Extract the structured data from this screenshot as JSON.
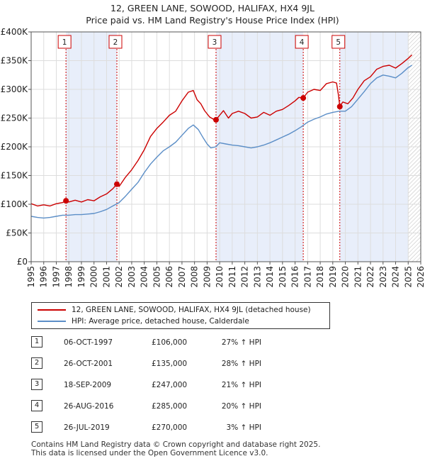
{
  "title_line1": "12, GREEN LANE, SOWOOD, HALIFAX, HX4 9JL",
  "title_line2": "Price paid vs. HM Land Registry's House Price Index (HPI)",
  "colors": {
    "property": "#cc0000",
    "hpi": "#5b8ec7",
    "shade": "#e8eefa",
    "grid": "#dddddd"
  },
  "chart_data": {
    "type": "line",
    "x_range": [
      1995,
      2026
    ],
    "ylim": [
      0,
      400000
    ],
    "y_ticks": [
      0,
      50000,
      100000,
      150000,
      200000,
      250000,
      300000,
      350000,
      400000
    ],
    "y_tick_labels": [
      "£0",
      "£50K",
      "£100K",
      "£150K",
      "£200K",
      "£250K",
      "£300K",
      "£350K",
      "£400K"
    ],
    "x_ticks": [
      "1995",
      "1996",
      "1997",
      "1998",
      "1999",
      "2000",
      "2001",
      "2002",
      "2003",
      "2004",
      "2005",
      "2006",
      "2007",
      "2008",
      "2009",
      "2010",
      "2011",
      "2012",
      "2013",
      "2014",
      "2015",
      "2016",
      "2017",
      "2018",
      "2019",
      "2020",
      "2021",
      "2022",
      "2023",
      "2024",
      "2025",
      "2026"
    ],
    "grid": true,
    "shaded_periods": [
      [
        1997.77,
        2001.82
      ],
      [
        2009.71,
        2016.65
      ],
      [
        2019.56,
        2025.0
      ]
    ],
    "forecast_hatch_from": 2025.0,
    "series": [
      {
        "name": "12, GREEN LANE, SOWOOD, HALIFAX, HX4 9JL (detached house)",
        "points": [
          [
            1995.0,
            101000
          ],
          [
            1995.5,
            97000
          ],
          [
            1996.0,
            99000
          ],
          [
            1996.5,
            97000
          ],
          [
            1997.0,
            101000
          ],
          [
            1997.5,
            103000
          ],
          [
            1997.77,
            106000
          ],
          [
            1998.0,
            104000
          ],
          [
            1998.5,
            107000
          ],
          [
            1999.0,
            104000
          ],
          [
            1999.5,
            108000
          ],
          [
            2000.0,
            106000
          ],
          [
            2000.5,
            113000
          ],
          [
            2001.0,
            118000
          ],
          [
            2001.5,
            127000
          ],
          [
            2001.82,
            135000
          ],
          [
            2002.0,
            131000
          ],
          [
            2002.5,
            147000
          ],
          [
            2003.0,
            160000
          ],
          [
            2003.5,
            176000
          ],
          [
            2004.0,
            195000
          ],
          [
            2004.5,
            218000
          ],
          [
            2005.0,
            232000
          ],
          [
            2005.5,
            243000
          ],
          [
            2006.0,
            255000
          ],
          [
            2006.5,
            262000
          ],
          [
            2007.0,
            280000
          ],
          [
            2007.5,
            295000
          ],
          [
            2007.9,
            298000
          ],
          [
            2008.2,
            282000
          ],
          [
            2008.5,
            275000
          ],
          [
            2008.8,
            263000
          ],
          [
            2009.2,
            252000
          ],
          [
            2009.5,
            248000
          ],
          [
            2009.71,
            247000
          ],
          [
            2010.0,
            255000
          ],
          [
            2010.3,
            263000
          ],
          [
            2010.7,
            250000
          ],
          [
            2011.0,
            258000
          ],
          [
            2011.5,
            262000
          ],
          [
            2012.0,
            258000
          ],
          [
            2012.5,
            250000
          ],
          [
            2013.0,
            252000
          ],
          [
            2013.5,
            260000
          ],
          [
            2014.0,
            255000
          ],
          [
            2014.5,
            262000
          ],
          [
            2015.0,
            265000
          ],
          [
            2015.5,
            272000
          ],
          [
            2016.0,
            280000
          ],
          [
            2016.3,
            286000
          ],
          [
            2016.65,
            285000
          ],
          [
            2017.0,
            295000
          ],
          [
            2017.5,
            300000
          ],
          [
            2018.0,
            298000
          ],
          [
            2018.5,
            310000
          ],
          [
            2019.0,
            313000
          ],
          [
            2019.3,
            311000
          ],
          [
            2019.45,
            290000
          ],
          [
            2019.56,
            270000
          ],
          [
            2019.8,
            278000
          ],
          [
            2020.2,
            275000
          ],
          [
            2020.6,
            285000
          ],
          [
            2021.0,
            300000
          ],
          [
            2021.5,
            315000
          ],
          [
            2022.0,
            322000
          ],
          [
            2022.5,
            335000
          ],
          [
            2023.0,
            340000
          ],
          [
            2023.5,
            342000
          ],
          [
            2024.0,
            337000
          ],
          [
            2024.5,
            345000
          ],
          [
            2025.0,
            354000
          ],
          [
            2025.3,
            360000
          ]
        ]
      },
      {
        "name": "HPI: Average price, detached house, Calderdale",
        "points": [
          [
            1995.0,
            79000
          ],
          [
            1995.5,
            77000
          ],
          [
            1996.0,
            76000
          ],
          [
            1996.5,
            77000
          ],
          [
            1997.0,
            79000
          ],
          [
            1997.5,
            81000
          ],
          [
            1998.0,
            81000
          ],
          [
            1998.5,
            82000
          ],
          [
            1999.0,
            82000
          ],
          [
            1999.5,
            83000
          ],
          [
            2000.0,
            84000
          ],
          [
            2000.5,
            87000
          ],
          [
            2001.0,
            91000
          ],
          [
            2001.5,
            97000
          ],
          [
            2002.0,
            103000
          ],
          [
            2002.5,
            114000
          ],
          [
            2003.0,
            126000
          ],
          [
            2003.5,
            138000
          ],
          [
            2004.0,
            155000
          ],
          [
            2004.5,
            170000
          ],
          [
            2005.0,
            182000
          ],
          [
            2005.5,
            193000
          ],
          [
            2006.0,
            200000
          ],
          [
            2006.5,
            208000
          ],
          [
            2007.0,
            220000
          ],
          [
            2007.5,
            232000
          ],
          [
            2007.9,
            238000
          ],
          [
            2008.3,
            230000
          ],
          [
            2008.7,
            215000
          ],
          [
            2009.0,
            205000
          ],
          [
            2009.3,
            198000
          ],
          [
            2009.7,
            200000
          ],
          [
            2010.0,
            207000
          ],
          [
            2010.5,
            205000
          ],
          [
            2011.0,
            203000
          ],
          [
            2011.5,
            202000
          ],
          [
            2012.0,
            200000
          ],
          [
            2012.5,
            198000
          ],
          [
            2013.0,
            200000
          ],
          [
            2013.5,
            203000
          ],
          [
            2014.0,
            207000
          ],
          [
            2014.5,
            212000
          ],
          [
            2015.0,
            217000
          ],
          [
            2015.5,
            222000
          ],
          [
            2016.0,
            228000
          ],
          [
            2016.5,
            235000
          ],
          [
            2017.0,
            243000
          ],
          [
            2017.5,
            248000
          ],
          [
            2018.0,
            252000
          ],
          [
            2018.5,
            257000
          ],
          [
            2019.0,
            260000
          ],
          [
            2019.5,
            262000
          ],
          [
            2020.0,
            262000
          ],
          [
            2020.5,
            270000
          ],
          [
            2021.0,
            283000
          ],
          [
            2021.5,
            296000
          ],
          [
            2022.0,
            310000
          ],
          [
            2022.5,
            320000
          ],
          [
            2023.0,
            325000
          ],
          [
            2023.5,
            323000
          ],
          [
            2024.0,
            320000
          ],
          [
            2024.5,
            328000
          ],
          [
            2025.0,
            338000
          ],
          [
            2025.3,
            342000
          ]
        ]
      }
    ],
    "sales": [
      {
        "label": "1",
        "x": 1997.77,
        "y": 106000
      },
      {
        "label": "2",
        "x": 2001.82,
        "y": 135000
      },
      {
        "label": "3",
        "x": 2009.71,
        "y": 247000
      },
      {
        "label": "4",
        "x": 2016.65,
        "y": 285000
      },
      {
        "label": "5",
        "x": 2019.56,
        "y": 270000
      }
    ]
  },
  "legend": {
    "property_label": "12, GREEN LANE, SOWOOD, HALIFAX, HX4 9JL (detached house)",
    "hpi_label": "HPI: Average price, detached house, Calderdale"
  },
  "transactions": [
    {
      "num": "1",
      "date": "06-OCT-1997",
      "price": "£106,000",
      "hpi": "27% ↑ HPI"
    },
    {
      "num": "2",
      "date": "26-OCT-2001",
      "price": "£135,000",
      "hpi": "28% ↑ HPI"
    },
    {
      "num": "3",
      "date": "18-SEP-2009",
      "price": "£247,000",
      "hpi": "21% ↑ HPI"
    },
    {
      "num": "4",
      "date": "26-AUG-2016",
      "price": "£285,000",
      "hpi": "20% ↑ HPI"
    },
    {
      "num": "5",
      "date": "26-JUL-2019",
      "price": "£270,000",
      "hpi": "3% ↑ HPI"
    }
  ],
  "footer_line1": "Contains HM Land Registry data © Crown copyright and database right 2025.",
  "footer_line2": "This data is licensed under the Open Government Licence v3.0."
}
